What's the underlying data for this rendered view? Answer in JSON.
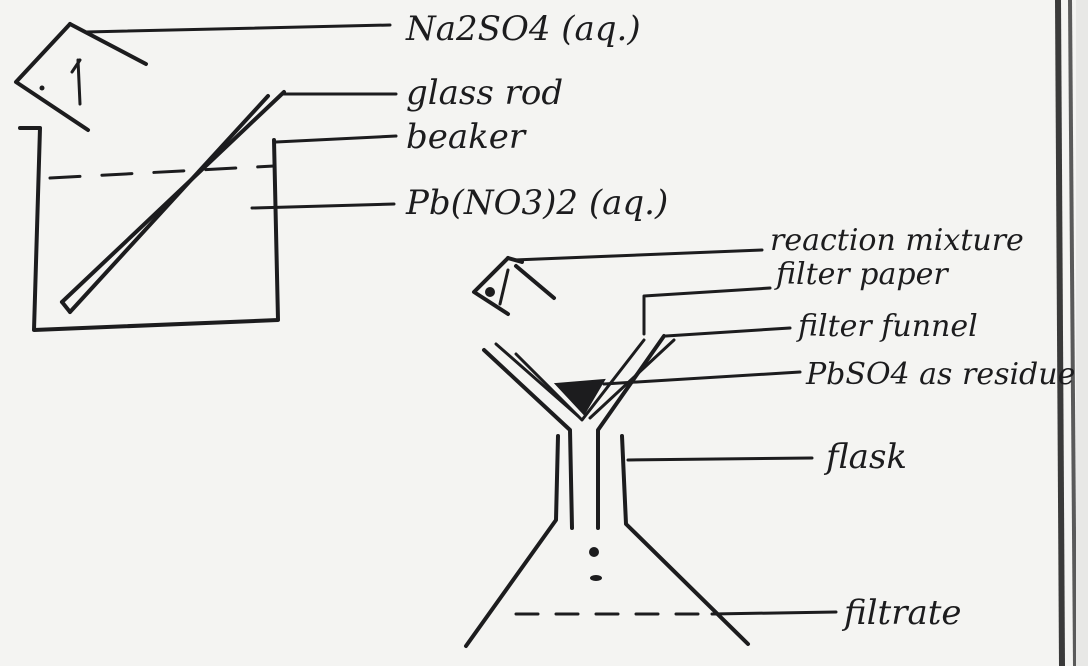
{
  "colors": {
    "board": "#f4f4f2",
    "ink": "#1c1c1e",
    "frame": "#3a3a3a"
  },
  "labels": {
    "na2so4": "Na2SO4 (aq.)",
    "glass_rod": "glass rod",
    "beaker": "beaker",
    "pbno32": "Pb(NO3)2 (aq.)",
    "reaction_mixture": "reaction mixture",
    "filter_paper": "filter paper",
    "filter_funnel": "filter funnel",
    "pbso4_residue": "PbSO4 as residue",
    "flask": "flask",
    "filtrate": "filtrate"
  }
}
